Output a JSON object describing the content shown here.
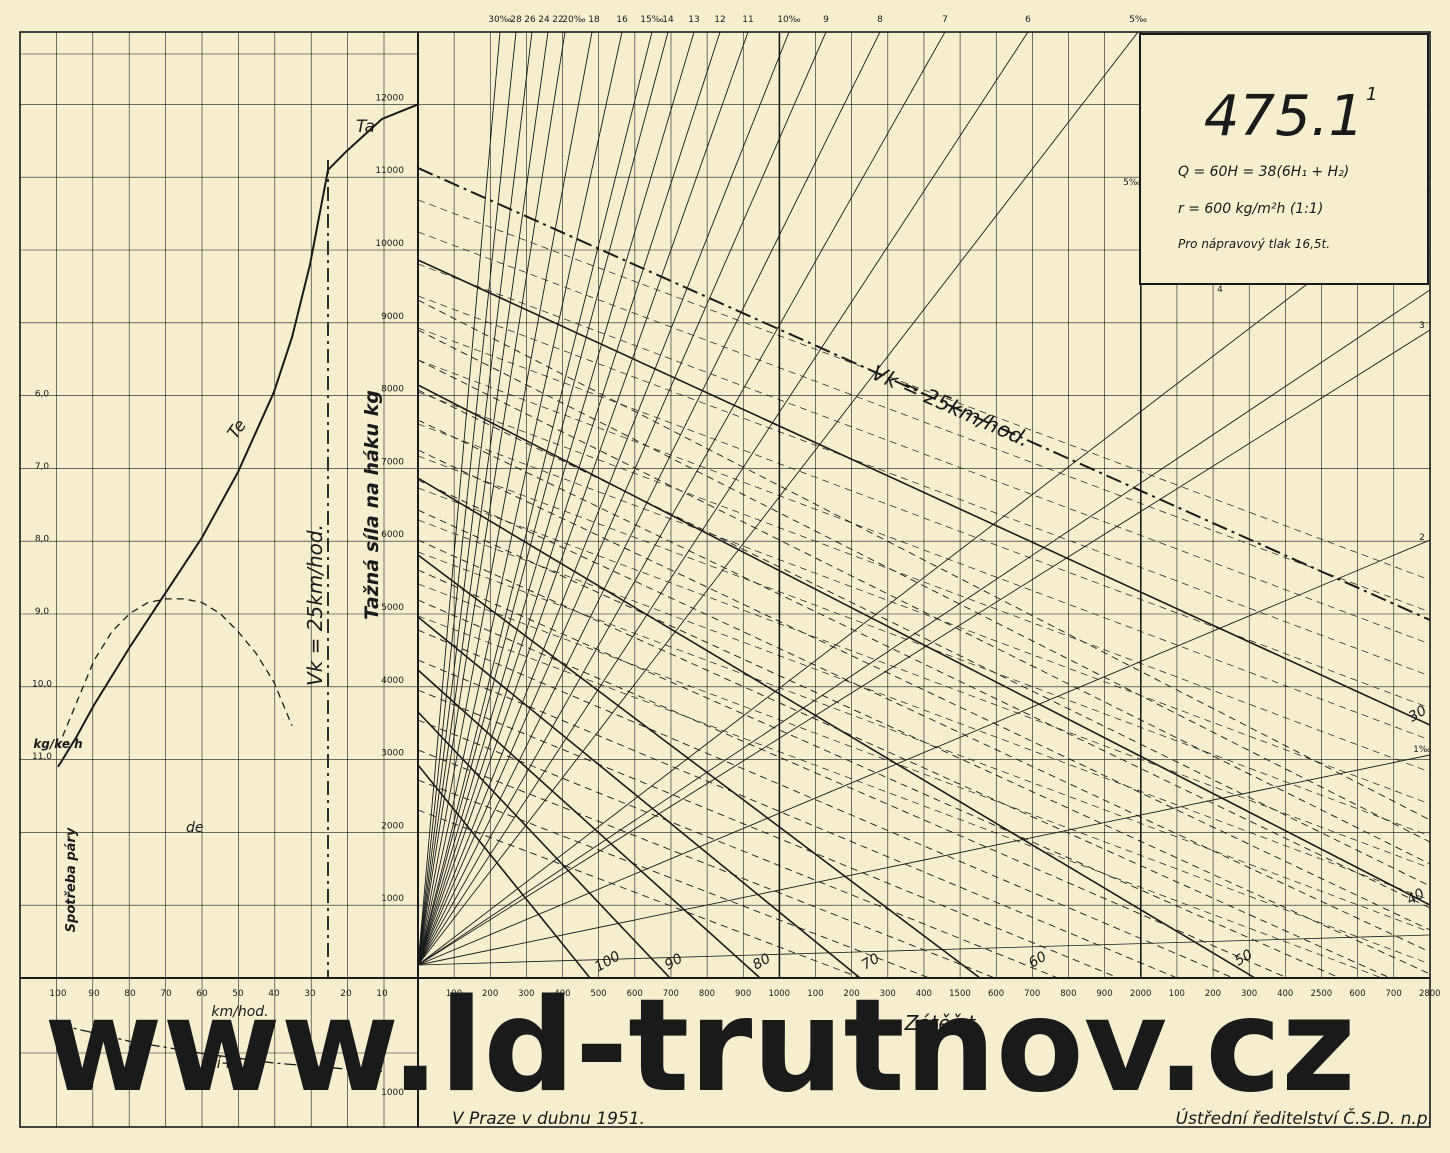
{
  "colors": {
    "paper": "#f5efcf",
    "ink": "#1a1a1a",
    "watermark": "#d9d2b2"
  },
  "watermark": "www.ld-trutnov.cz",
  "title_box": {
    "number": "475.1",
    "superscript": "1",
    "line1": "Q = 60H = 38(6H₁ + H₂)",
    "line2": "r = 600 kg/m²h (1:1)",
    "line3": "Pro nápravový tlak 16,5t."
  },
  "footer": {
    "left": "V Praze v dubnu 1951.",
    "right": "Ústřední ředitelství Č.S.D. n.p."
  },
  "chart_data": [
    {
      "type": "line",
      "name": "left-panel",
      "xlabel": "km/hod.",
      "ylabel": "Tažná síla na háku kg",
      "ylabel_secondary": "Spotřeba páry",
      "unit_secondary": "kg/ke h",
      "x_ticks": [
        "100",
        "90",
        "80",
        "70",
        "60",
        "50",
        "40",
        "30",
        "20",
        "10"
      ],
      "y_ticks": [
        "1000",
        "2000",
        "3000",
        "4000",
        "5000",
        "6000",
        "7000",
        "8000",
        "9000",
        "10000",
        "11000",
        "12000"
      ],
      "y_ticks_secondary": [
        "6,0",
        "7,0",
        "8,0",
        "9,0",
        "10,0",
        "11,0"
      ],
      "xlim": [
        100,
        0
      ],
      "ylim": [
        0,
        12000
      ],
      "series": [
        {
          "name": "Te",
          "points": [
            [
              100,
              2900
            ],
            [
              95,
              3300
            ],
            [
              90,
              3750
            ],
            [
              80,
              4550
            ],
            [
              70,
              5300
            ],
            [
              60,
              6050
            ],
            [
              50,
              6950
            ],
            [
              40,
              8050
            ],
            [
              35,
              8800
            ],
            [
              30,
              9800
            ],
            [
              25,
              11100
            ]
          ]
        },
        {
          "name": "Ta",
          "points": [
            [
              25,
              11100
            ],
            [
              20,
              11350
            ],
            [
              10,
              11800
            ],
            [
              0,
              12000
            ]
          ]
        },
        {
          "name": "de",
          "points": [
            [
              100,
              10.8
            ],
            [
              95,
              10.2
            ],
            [
              90,
              9.6
            ],
            [
              85,
              9.2
            ],
            [
              80,
              8.95
            ],
            [
              75,
              8.8
            ],
            [
              70,
              8.75
            ],
            [
              65,
              8.75
            ],
            [
              60,
              8.8
            ],
            [
              55,
              8.95
            ],
            [
              50,
              9.2
            ],
            [
              45,
              9.5
            ],
            [
              40,
              9.9
            ],
            [
              35,
              10.5
            ]
          ]
        }
      ],
      "annotations": [
        {
          "text": "Vk = 25km/hod.",
          "x": 25
        }
      ],
      "grid": true
    },
    {
      "type": "line",
      "name": "resistance-panel",
      "label": "Oi+t",
      "y_ticks": [
        "1000",
        "2000"
      ],
      "ylim": [
        0,
        2000
      ],
      "series": [
        {
          "name": "Oi+t",
          "points": [
            [
              100,
              420
            ],
            [
              80,
              280
            ],
            [
              60,
              180
            ],
            [
              40,
              100
            ],
            [
              20,
              50
            ],
            [
              10,
              30
            ]
          ]
        }
      ]
    },
    {
      "type": "line",
      "name": "load-nomogram",
      "xlabel": "Zátěž t",
      "x_ticks": [
        "100",
        "200",
        "300",
        "400",
        "500",
        "600",
        "700",
        "800",
        "900",
        "1000",
        "100",
        "200",
        "300",
        "400",
        "1500",
        "600",
        "700",
        "800",
        "900",
        "2000",
        "100",
        "200",
        "300",
        "400",
        "2500",
        "600",
        "700",
        "2800"
      ],
      "x_range_t": [
        0,
        2800
      ],
      "gradient_labels": [
        "30‰",
        "28",
        "26",
        "24",
        "22",
        "20‰",
        "18",
        "16",
        "15‰",
        "14",
        "13",
        "12",
        "11",
        "10‰",
        "9",
        "8",
        "7",
        "6",
        "5‰",
        "4",
        "3",
        "2",
        "1‰"
      ],
      "speed_labels": [
        "100",
        "90",
        "80",
        "70",
        "60",
        "50",
        "40",
        "30"
      ],
      "speed_line": {
        "label": "Vk = 25km/hod."
      }
    }
  ]
}
